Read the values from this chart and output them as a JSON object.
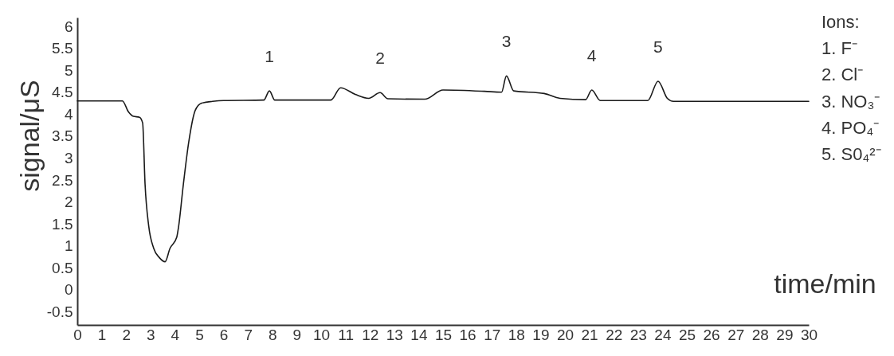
{
  "chart_data": {
    "type": "line",
    "xlabel": "time/min",
    "ylabel": "signal/μS",
    "xlim": [
      0,
      30
    ],
    "xticks": [
      0,
      1,
      2,
      3,
      4,
      5,
      6,
      7,
      8,
      9,
      10,
      11,
      12,
      13,
      14,
      15,
      16,
      17,
      18,
      19,
      20,
      21,
      22,
      23,
      24,
      25,
      26,
      27,
      28,
      29,
      30
    ],
    "ylim": [
      -0.8,
      6.2
    ],
    "yticks": [
      -0.5,
      0,
      0.5,
      1,
      1.5,
      2,
      2.5,
      3,
      3.5,
      4,
      4.5,
      5,
      5.5,
      6
    ],
    "grid": false,
    "marker": "none",
    "line_style": "solid",
    "series": [
      {
        "color": "#1a1a1a",
        "x": [
          0,
          1.85,
          2.1,
          2.3,
          2.55,
          2.68,
          2.78,
          2.93,
          3.13,
          3.37,
          3.6,
          3.8,
          4.08,
          4.15,
          4.35,
          4.57,
          4.84,
          5.1,
          5.55,
          6,
          7.65,
          7.88,
          8.1,
          10.4,
          10.8,
          11.4,
          11.95,
          12.42,
          12.74,
          14.25,
          15.0,
          16.7,
          17.4,
          17.6,
          17.9,
          19.15,
          19.8,
          20.85,
          21.1,
          21.45,
          23.4,
          23.82,
          24.2,
          24.45,
          30
        ],
        "values": [
          4.3,
          4.3,
          4.05,
          3.95,
          3.93,
          3.8,
          2.4,
          1.45,
          0.95,
          0.73,
          0.64,
          0.94,
          1.2,
          1.42,
          2.4,
          3.36,
          4.09,
          4.25,
          4.29,
          4.31,
          4.32,
          4.53,
          4.32,
          4.32,
          4.6,
          4.45,
          4.36,
          4.49,
          4.35,
          4.34,
          4.55,
          4.52,
          4.5,
          4.87,
          4.53,
          4.47,
          4.36,
          4.33,
          4.55,
          4.31,
          4.31,
          4.75,
          4.36,
          4.29,
          4.29
        ]
      }
    ],
    "annotations": [
      {
        "text": "1",
        "x": 7.88,
        "y": 4.53
      },
      {
        "text": "2",
        "x": 12.42,
        "y": 4.49
      },
      {
        "text": "3",
        "x": 17.6,
        "y": 4.87
      },
      {
        "text": "4",
        "x": 21.1,
        "y": 4.55
      },
      {
        "text": "5",
        "x": 23.82,
        "y": 4.75
      },
      "Ions:",
      "1. F⁻",
      "2. Cl⁻",
      "3. NO₃⁻",
      "4. PO₄⁻",
      "5. S0₄²⁻"
    ]
  }
}
